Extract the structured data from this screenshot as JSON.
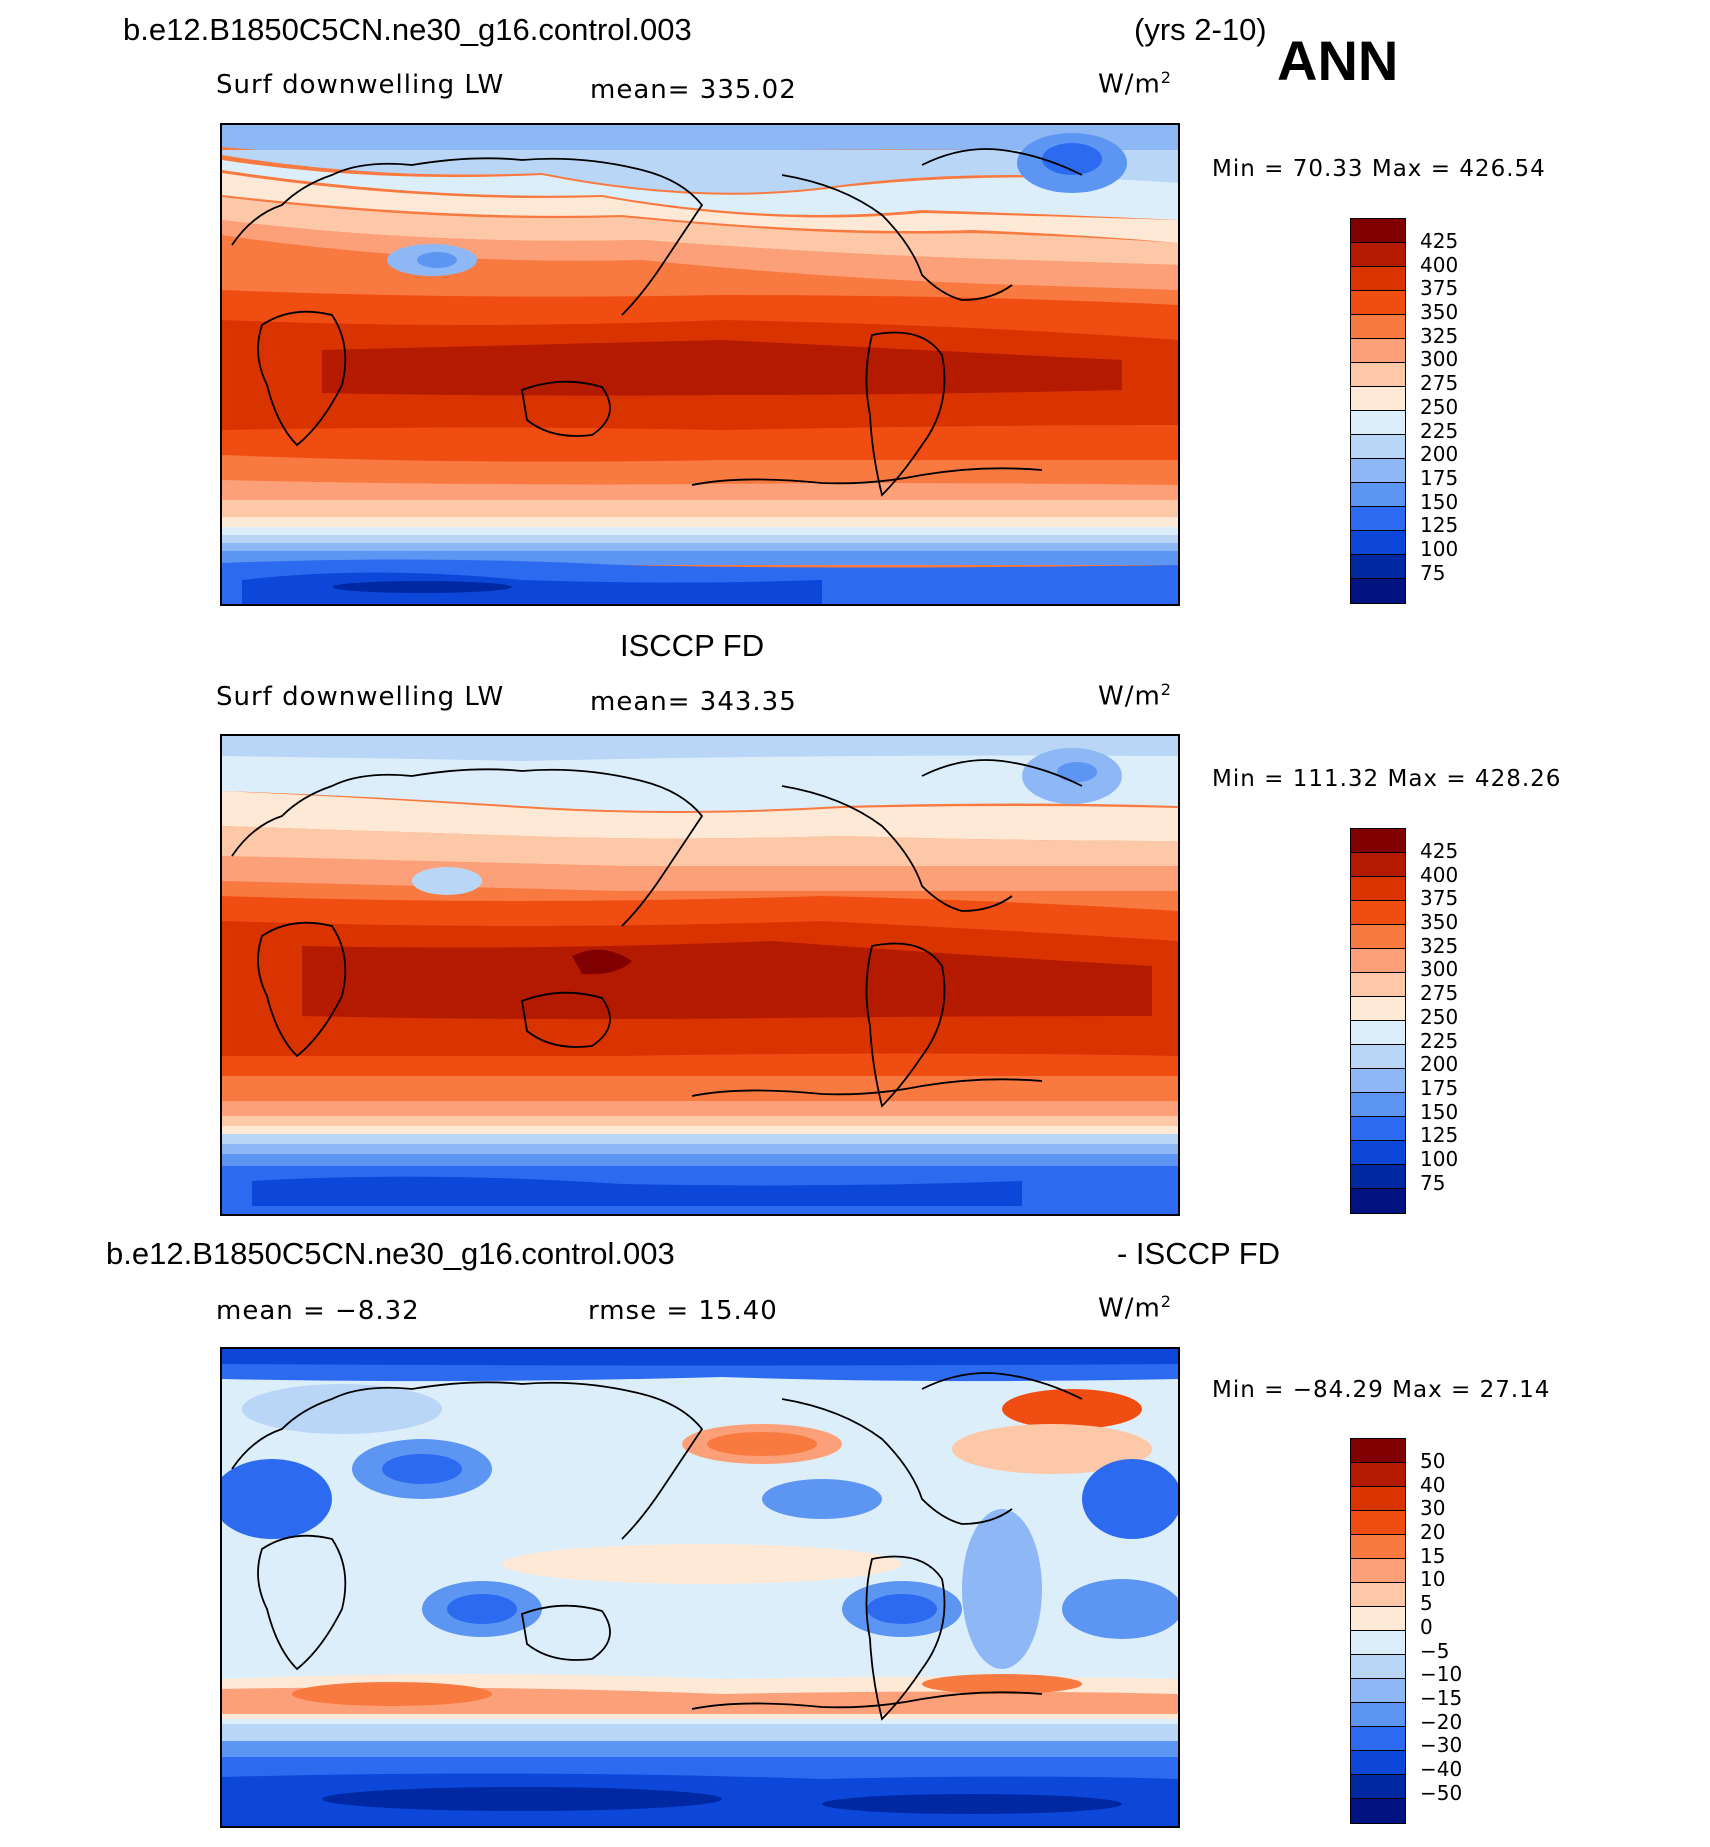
{
  "header": {
    "case_name": "b.e12.B1850C5CN.ne30_g16.control.003",
    "years": "(yrs 2-10)",
    "season": "ANN"
  },
  "units": "W/m",
  "units_sup": "2",
  "panels": [
    {
      "title": "",
      "variable": "Surf downwelling LW",
      "stat_text": "mean=  335.02",
      "minmax": "Min =   70.33 Max = 426.54"
    },
    {
      "title": "ISCCP FD",
      "variable": "Surf downwelling LW",
      "stat_text": "mean=  343.35",
      "minmax": "Min = 111.32 Max = 428.26"
    },
    {
      "title_left": "b.e12.B1850C5CN.ne30_g16.control.003",
      "title_right": "- ISCCP FD",
      "mean_text": "mean =   −8.32",
      "rmse_text": "rmse =   15.40",
      "minmax": "Min = −84.29 Max =   27.14"
    }
  ],
  "colorbar_abs": {
    "labels": [
      "425",
      "400",
      "375",
      "350",
      "325",
      "300",
      "275",
      "250",
      "225",
      "200",
      "175",
      "150",
      "125",
      "100",
      "75"
    ],
    "colors": [
      "#800000",
      "#b31a00",
      "#d93300",
      "#f04d12",
      "#f87a40",
      "#fca07a",
      "#fdc8a8",
      "#fde9d6",
      "#dceefa",
      "#b9d6f7",
      "#8db8f5",
      "#5c95f2",
      "#2c6bf0",
      "#0d47d9",
      "#0028a3",
      "#001380"
    ]
  },
  "colorbar_diff": {
    "labels": [
      "50",
      "40",
      "30",
      "20",
      "15",
      "10",
      "5",
      "0",
      "−5",
      "−10",
      "−15",
      "−20",
      "−30",
      "−40",
      "−50"
    ],
    "colors": [
      "#800000",
      "#b31a00",
      "#d93300",
      "#f04d12",
      "#f87a40",
      "#fca07a",
      "#fdc8a8",
      "#fde9d6",
      "#dceefa",
      "#b9d6f7",
      "#8db8f5",
      "#5c95f2",
      "#2c6bf0",
      "#0d47d9",
      "#0028a3",
      "#001380"
    ]
  },
  "map_colors": {
    "deep_red": "#b31a00",
    "red": "#d93300",
    "orange_red": "#f04d12",
    "orange": "#f87a40",
    "salmon": "#fca07a",
    "peach": "#fdc8a8",
    "cream": "#fde9d6",
    "pale_blue": "#dceefa",
    "light_blue": "#b9d6f7",
    "mid_blue": "#8db8f5",
    "blue": "#5c95f2",
    "strong_blue": "#2c6bf0",
    "dark_blue": "#0d47d9",
    "navy": "#0028a3",
    "darkest_red": "#800000"
  }
}
